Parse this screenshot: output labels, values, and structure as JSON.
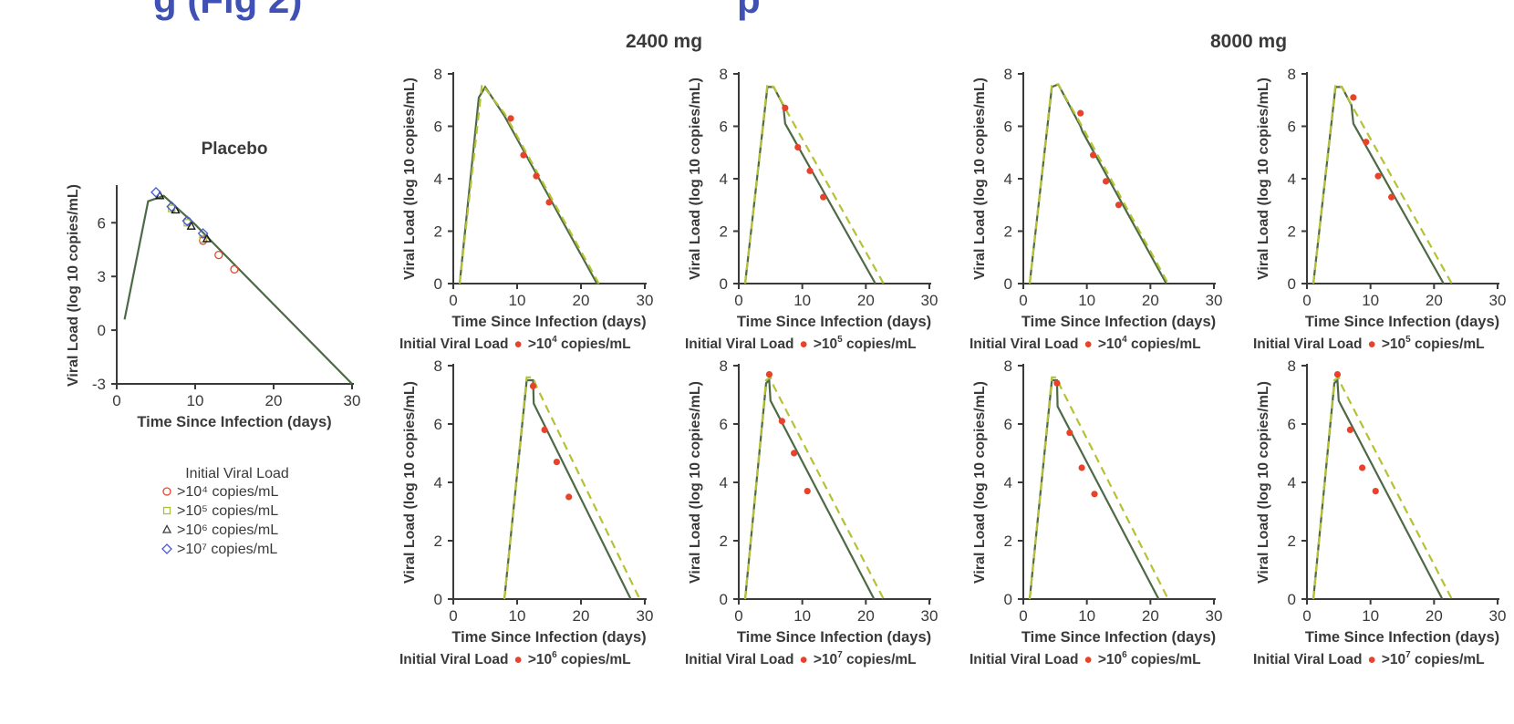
{
  "header_fragment": "g (Fig 2)",
  "header_fragment_right": "p",
  "group_labels": [
    "2400 mg",
    "8000 mg"
  ],
  "colors": {
    "header": "#3f51b5",
    "model_line": "#4d6a46",
    "dashed_line": "#b5c234",
    "observed_point": "#e8432a",
    "placebo_red": "#e8432a",
    "placebo_green": "#a8c43a",
    "placebo_black": "#111111",
    "placebo_blue": "#4a5bd0",
    "axis": "#3a3a3a"
  },
  "chart_data": [
    {
      "id": "placebo",
      "type": "line",
      "title": "Placebo",
      "xlabel": "Time Since Infection (days)",
      "ylabel": "Viral Load (log 10 copies/mL)",
      "xlim": [
        0,
        30
      ],
      "ylim": [
        -3,
        8
      ],
      "xticks": [
        0,
        10,
        20,
        30
      ],
      "yticks": [
        -3,
        0,
        3,
        6
      ],
      "series": [
        {
          "role": "model",
          "x": [
            1,
            4,
            6,
            8,
            10,
            12,
            30
          ],
          "y": [
            0.6,
            7.2,
            7.5,
            6.7,
            5.9,
            5.0,
            -3.0
          ]
        }
      ],
      "markers": [
        {
          "name": ">10⁴ copies/mL",
          "shape": "circle",
          "color_key": "placebo_red",
          "x": [
            9,
            11,
            13,
            15
          ],
          "y": [
            6.1,
            5.0,
            4.2,
            3.4
          ]
        },
        {
          "name": ">10⁵ copies/mL",
          "shape": "square",
          "color_key": "placebo_green",
          "x": [
            7,
            9,
            11
          ],
          "y": [
            6.8,
            6.0,
            5.1
          ]
        },
        {
          "name": ">10⁶ copies/mL",
          "shape": "triangle",
          "color_key": "placebo_black",
          "x": [
            5.5,
            7.5,
            9.5,
            11.5
          ],
          "y": [
            7.5,
            6.7,
            5.8,
            5.1
          ]
        },
        {
          "name": ">10⁷ copies/mL",
          "shape": "diamond",
          "color_key": "placebo_blue",
          "x": [
            5,
            7,
            9,
            11
          ],
          "y": [
            7.7,
            6.9,
            6.1,
            5.4
          ]
        }
      ],
      "legend_title": "Initial Viral Load"
    },
    {
      "id": "2400-1e4",
      "type": "line",
      "group": "2400 mg",
      "xlabel": "Time Since Infection (days)",
      "ylabel": "Viral Load (log 10 copies/mL)",
      "legend_label": "Initial Viral Load",
      "legend_prefix": ">10",
      "legend_exp": "4",
      "legend_suffix": " copies/mL",
      "xlim": [
        0,
        30
      ],
      "ylim": [
        0,
        8
      ],
      "xticks": [
        0,
        10,
        20,
        30
      ],
      "yticks": [
        0,
        2,
        4,
        6,
        8
      ],
      "series": [
        {
          "role": "model",
          "x": [
            1,
            4,
            5,
            8,
            22.5
          ],
          "y": [
            0,
            7.1,
            7.5,
            6.4,
            0
          ]
        },
        {
          "role": "dashed",
          "x": [
            1,
            4.5,
            8,
            22.8
          ],
          "y": [
            0,
            7.6,
            6.5,
            0
          ]
        }
      ],
      "points": {
        "x": [
          9,
          11,
          13,
          15
        ],
        "y": [
          6.3,
          4.9,
          4.1,
          3.1
        ]
      }
    },
    {
      "id": "2400-1e5",
      "type": "line",
      "group": "2400 mg",
      "xlabel": "Time Since Infection (days)",
      "ylabel": "Viral Load (log 10 copies/mL)",
      "legend_label": "Initial Viral Load",
      "legend_prefix": ">10",
      "legend_exp": "5",
      "legend_suffix": " copies/mL",
      "xlim": [
        0,
        30
      ],
      "ylim": [
        0,
        8
      ],
      "xticks": [
        0,
        10,
        20,
        30
      ],
      "yticks": [
        0,
        2,
        4,
        6,
        8
      ],
      "series": [
        {
          "role": "model",
          "x": [
            1,
            4.5,
            5.5,
            7,
            7.3,
            21.5
          ],
          "y": [
            0,
            7.5,
            7.5,
            6.8,
            6.1,
            0
          ]
        },
        {
          "role": "dashed",
          "x": [
            1,
            4.5,
            5.5,
            7.5,
            22.8
          ],
          "y": [
            0,
            7.6,
            7.5,
            6.6,
            0
          ]
        }
      ],
      "points": {
        "x": [
          7.3,
          9.3,
          11.2,
          13.3
        ],
        "y": [
          6.7,
          5.2,
          4.3,
          3.3
        ]
      }
    },
    {
      "id": "8000-1e4",
      "type": "line",
      "group": "8000 mg",
      "xlabel": "Time Since Infection (days)",
      "ylabel": "Viral Load (log 10 copies/mL)",
      "legend_label": "Initial Viral Load",
      "legend_prefix": ">10",
      "legend_exp": "4",
      "legend_suffix": " copies/mL",
      "xlim": [
        0,
        30
      ],
      "ylim": [
        0,
        8
      ],
      "xticks": [
        0,
        10,
        20,
        30
      ],
      "yticks": [
        0,
        2,
        4,
        6,
        8
      ],
      "series": [
        {
          "role": "model",
          "x": [
            1,
            4.5,
            5.5,
            9,
            9.3,
            22.5
          ],
          "y": [
            0,
            7.5,
            7.6,
            6.0,
            5.8,
            0
          ]
        },
        {
          "role": "dashed",
          "x": [
            1,
            4.5,
            5.5,
            9,
            22.8
          ],
          "y": [
            0,
            7.6,
            7.6,
            6.1,
            0
          ]
        }
      ],
      "points": {
        "x": [
          9,
          11,
          13,
          15
        ],
        "y": [
          6.5,
          4.9,
          3.9,
          3.0
        ]
      }
    },
    {
      "id": "8000-1e5",
      "type": "line",
      "group": "8000 mg",
      "xlabel": "Time Since Infection (days)",
      "ylabel": "Viral Load (log 10 copies/mL)",
      "legend_label": "Initial Viral Load",
      "legend_prefix": ">10",
      "legend_exp": "5",
      "legend_suffix": " copies/mL",
      "xlim": [
        0,
        30
      ],
      "ylim": [
        0,
        8
      ],
      "xticks": [
        0,
        10,
        20,
        30
      ],
      "yticks": [
        0,
        2,
        4,
        6,
        8
      ],
      "series": [
        {
          "role": "model",
          "x": [
            1,
            4.5,
            5.5,
            7,
            7.3,
            21.5
          ],
          "y": [
            0,
            7.5,
            7.5,
            6.8,
            6.1,
            0
          ]
        },
        {
          "role": "dashed",
          "x": [
            1,
            4.5,
            5.5,
            7.5,
            22.8
          ],
          "y": [
            0,
            7.6,
            7.5,
            6.6,
            0
          ]
        }
      ],
      "points": {
        "x": [
          7.3,
          9.3,
          11.2,
          13.3
        ],
        "y": [
          7.1,
          5.4,
          4.1,
          3.3
        ]
      }
    },
    {
      "id": "2400-1e6",
      "type": "line",
      "group": "2400 mg",
      "xlabel": "Time Since Infection (days)",
      "ylabel": "Viral Load (log 10 copies/mL)",
      "legend_label": "Initial Viral Load",
      "legend_prefix": ">10",
      "legend_exp": "6",
      "legend_suffix": " copies/mL",
      "xlim": [
        0,
        30
      ],
      "ylim": [
        0,
        8
      ],
      "xticks": [
        0,
        10,
        20,
        30
      ],
      "yticks": [
        0,
        2,
        4,
        6,
        8
      ],
      "series": [
        {
          "role": "model",
          "x": [
            8,
            11.5,
            12.5,
            12.6,
            27.8
          ],
          "y": [
            0,
            7.5,
            7.5,
            6.7,
            0
          ]
        },
        {
          "role": "dashed",
          "x": [
            8,
            11.5,
            12.5,
            13,
            29.2
          ],
          "y": [
            0,
            7.6,
            7.6,
            7.3,
            0
          ]
        }
      ],
      "points": {
        "x": [
          12.5,
          14.3,
          16.2,
          18.1
        ],
        "y": [
          7.3,
          5.8,
          4.7,
          3.5
        ]
      }
    },
    {
      "id": "2400-1e7",
      "type": "line",
      "group": "2400 mg",
      "xlabel": "Time Since Infection (days)",
      "ylabel": "Viral Load (log 10 copies/mL)",
      "legend_label": "Initial Viral Load",
      "legend_prefix": ">10",
      "legend_exp": "7",
      "legend_suffix": " copies/mL",
      "xlim": [
        0,
        30
      ],
      "ylim": [
        0,
        8
      ],
      "xticks": [
        0,
        10,
        20,
        30
      ],
      "yticks": [
        0,
        2,
        4,
        6,
        8
      ],
      "series": [
        {
          "role": "model",
          "x": [
            1,
            4.3,
            4.8,
            5.0,
            21.3
          ],
          "y": [
            0,
            7.4,
            7.5,
            6.8,
            0
          ]
        },
        {
          "role": "dashed",
          "x": [
            1,
            4.3,
            5.0,
            5.5,
            22.8
          ],
          "y": [
            0,
            7.5,
            7.6,
            7.3,
            0
          ]
        }
      ],
      "points": {
        "x": [
          4.8,
          6.8,
          8.7,
          10.8
        ],
        "y": [
          7.7,
          6.1,
          5.0,
          3.7
        ]
      }
    },
    {
      "id": "8000-1e6",
      "type": "line",
      "group": "8000 mg",
      "xlabel": "Time Since Infection (days)",
      "ylabel": "Viral Load (log 10 copies/mL)",
      "legend_label": "Initial Viral Load",
      "legend_prefix": ">10",
      "legend_exp": "6",
      "legend_suffix": " copies/mL",
      "xlim": [
        0,
        30
      ],
      "ylim": [
        0,
        8
      ],
      "xticks": [
        0,
        10,
        20,
        30
      ],
      "yticks": [
        0,
        2,
        4,
        6,
        8
      ],
      "series": [
        {
          "role": "model",
          "x": [
            1,
            4.5,
            5.3,
            5.4,
            21.3
          ],
          "y": [
            0,
            7.5,
            7.5,
            6.6,
            0
          ]
        },
        {
          "role": "dashed",
          "x": [
            1,
            4.5,
            5.3,
            5.8,
            22.8
          ],
          "y": [
            0,
            7.6,
            7.6,
            7.3,
            0
          ]
        }
      ],
      "points": {
        "x": [
          5.3,
          7.3,
          9.2,
          11.2
        ],
        "y": [
          7.4,
          5.7,
          4.5,
          3.6
        ]
      }
    },
    {
      "id": "8000-1e7",
      "type": "line",
      "group": "8000 mg",
      "xlabel": "Time Since Infection (days)",
      "ylabel": "Viral Load (log 10 copies/mL)",
      "legend_label": "Initial Viral Load",
      "legend_prefix": ">10",
      "legend_exp": "7",
      "legend_suffix": " copies/mL",
      "xlim": [
        0,
        30
      ],
      "ylim": [
        0,
        8
      ],
      "xticks": [
        0,
        10,
        20,
        30
      ],
      "yticks": [
        0,
        2,
        4,
        6,
        8
      ],
      "series": [
        {
          "role": "model",
          "x": [
            1,
            4.3,
            4.8,
            5.0,
            21.3
          ],
          "y": [
            0,
            7.4,
            7.5,
            6.8,
            0
          ]
        },
        {
          "role": "dashed",
          "x": [
            1,
            4.3,
            5.0,
            5.5,
            22.8
          ],
          "y": [
            0,
            7.5,
            7.6,
            7.3,
            0
          ]
        }
      ],
      "points": {
        "x": [
          4.8,
          6.8,
          8.7,
          10.8
        ],
        "y": [
          7.7,
          5.8,
          4.5,
          3.7
        ]
      }
    }
  ]
}
